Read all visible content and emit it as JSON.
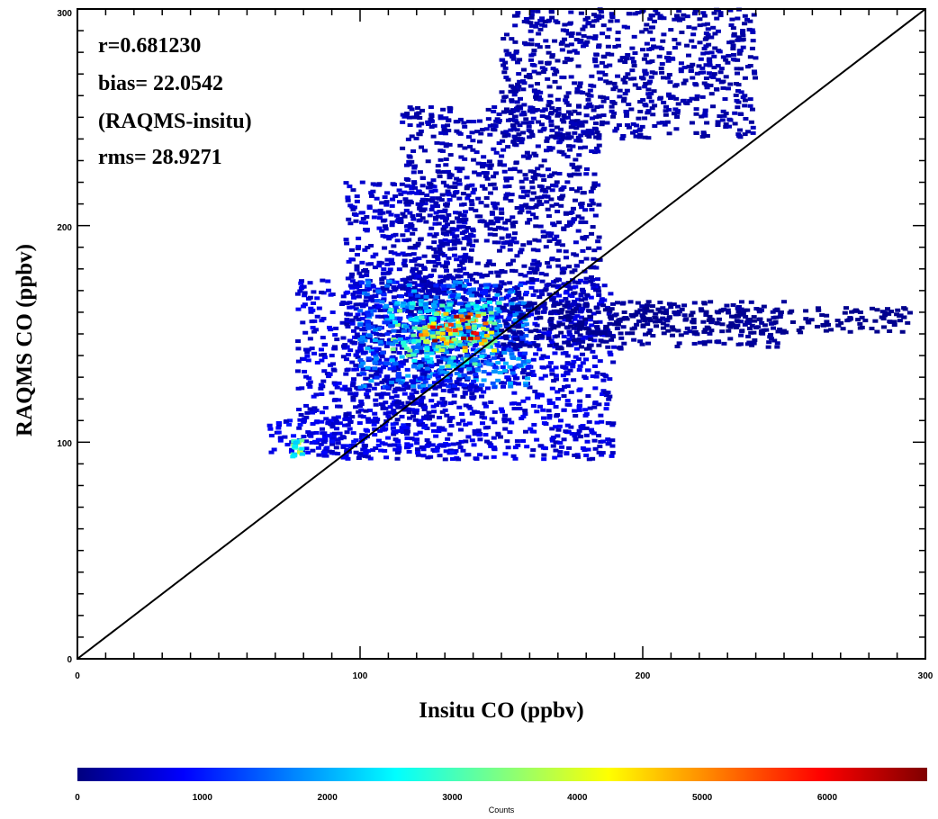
{
  "chart_data": {
    "type": "heatmap",
    "title": "",
    "xlabel": "Insitu CO (ppbv)",
    "ylabel": "RAQMS CO (ppbv)",
    "xlim": [
      0,
      300
    ],
    "ylim": [
      0,
      300
    ],
    "x_ticks": [
      "0",
      "100",
      "200",
      "300"
    ],
    "y_ticks": [
      "0",
      "100",
      "200",
      "300"
    ],
    "stats": [
      "r=0.681230",
      "bias= 22.0542",
      "(RAQMS-insitu)",
      "rms= 28.9271"
    ],
    "one_to_one_line": {
      "from": [
        0,
        0
      ],
      "to": [
        300,
        300
      ]
    },
    "colorbar": {
      "label": "Counts",
      "range": [
        0,
        6800
      ],
      "ticks": [
        "0",
        "1000",
        "2000",
        "3000",
        "4000",
        "5000",
        "6000"
      ],
      "colors": [
        "#00007f",
        "#0000ff",
        "#0080ff",
        "#00ffff",
        "#80ff80",
        "#ffff00",
        "#ff8000",
        "#ff0000",
        "#7f0000"
      ]
    },
    "density_regions": [
      {
        "x": [
          78,
          190
        ],
        "y": [
          92,
          175
        ],
        "counts": 600
      },
      {
        "x": [
          68,
          135
        ],
        "y": [
          95,
          110
        ],
        "counts": 700
      },
      {
        "x": [
          95,
          140
        ],
        "y": [
          110,
          220
        ],
        "counts": 500
      },
      {
        "x": [
          115,
          185
        ],
        "y": [
          160,
          255
        ],
        "counts": 350
      },
      {
        "x": [
          150,
          240
        ],
        "y": [
          240,
          300
        ],
        "counts": 300
      },
      {
        "x": [
          100,
          160
        ],
        "y": [
          125,
          175
        ],
        "counts": 1500
      },
      {
        "x": [
          110,
          150
        ],
        "y": [
          135,
          165
        ],
        "counts": 2500
      },
      {
        "x": [
          120,
          148
        ],
        "y": [
          142,
          160
        ],
        "counts": 3800
      },
      {
        "x": [
          125,
          142
        ],
        "y": [
          145,
          158
        ],
        "counts": 5000
      },
      {
        "x": [
          76,
          80
        ],
        "y": [
          93,
          101
        ],
        "counts": 2800
      },
      {
        "x": [
          150,
          250
        ],
        "y": [
          143,
          165
        ],
        "counts": 200
      },
      {
        "x": [
          170,
          295
        ],
        "y": [
          150,
          162
        ],
        "counts": 100
      }
    ]
  }
}
